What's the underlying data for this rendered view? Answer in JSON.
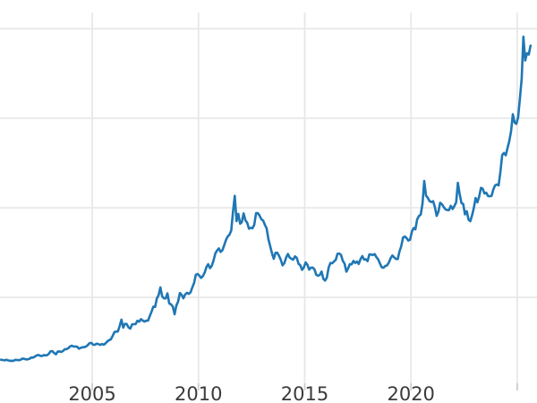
{
  "chart_data": {
    "type": "line",
    "title": "",
    "xlabel": "",
    "ylabel": "",
    "legend": false,
    "grid": true,
    "x_range": [
      2000.66,
      2025.93
    ],
    "y_range": [
      36,
      3762
    ],
    "y_gridline_values": [
      900,
      1800,
      2700,
      3600
    ],
    "x_ticks": [
      {
        "year": 2005,
        "label": "2005"
      },
      {
        "year": 2010,
        "label": "2010"
      },
      {
        "year": 2015,
        "label": "2015"
      },
      {
        "year": 2020,
        "label": "2020"
      },
      {
        "year": 2025,
        "label": ""
      }
    ],
    "series": {
      "frequency": "monthly",
      "start_year": 2000,
      "start_month": 9,
      "values": [
        273,
        270,
        266,
        272,
        266,
        262,
        263,
        261,
        272,
        270,
        268,
        272,
        284,
        283,
        276,
        276,
        281,
        295,
        294,
        303,
        314,
        321,
        313,
        310,
        319,
        317,
        319,
        333,
        357,
        359,
        340,
        328,
        355,
        356,
        351,
        360,
        379,
        379,
        389,
        407,
        414,
        405,
        406,
        403,
        384,
        392,
        398,
        400,
        405,
        420,
        439,
        442,
        424,
        423,
        434,
        429,
        422,
        431,
        424,
        437,
        456,
        470,
        477,
        510,
        550,
        555,
        557,
        611,
        676,
        596,
        634,
        632,
        598,
        586,
        628,
        630,
        631,
        665,
        655,
        680,
        667,
        656,
        665,
        665,
        713,
        755,
        806,
        804,
        890,
        922,
        1000,
        910,
        889,
        889,
        940,
        839,
        829,
        807,
        730,
        816,
        858,
        943,
        924,
        890,
        929,
        946,
        934,
        950,
        997,
        1043,
        1127,
        1135,
        1118,
        1095,
        1113,
        1149,
        1205,
        1233,
        1193,
        1216,
        1271,
        1342,
        1370,
        1391,
        1356,
        1373,
        1424,
        1474,
        1511,
        1529,
        1573,
        1756,
        1920,
        1666,
        1739,
        1640,
        1656,
        1743,
        1674,
        1650,
        1589,
        1598,
        1594,
        1630,
        1745,
        1747,
        1721,
        1685,
        1671,
        1628,
        1593,
        1485,
        1414,
        1343,
        1287,
        1347,
        1348,
        1316,
        1276,
        1221,
        1244,
        1300,
        1336,
        1299,
        1288,
        1279,
        1311,
        1296,
        1237,
        1223,
        1176,
        1201,
        1251,
        1227,
        1179,
        1198,
        1199,
        1181,
        1128,
        1117,
        1125,
        1159,
        1086,
        1068,
        1097,
        1200,
        1246,
        1242,
        1260,
        1276,
        1337,
        1340,
        1327,
        1267,
        1238,
        1157,
        1192,
        1234,
        1231,
        1266,
        1246,
        1260,
        1236,
        1283,
        1314,
        1280,
        1282,
        1264,
        1331,
        1330,
        1325,
        1335,
        1303,
        1281,
        1238,
        1201,
        1198,
        1215,
        1221,
        1250,
        1292,
        1320,
        1301,
        1286,
        1284,
        1359,
        1413,
        1500,
        1511,
        1495,
        1471,
        1479,
        1561,
        1597,
        1583,
        1683,
        1716,
        1732,
        1843,
        2070,
        1922,
        1900,
        1866,
        1858,
        1867,
        1808,
        1718,
        1762,
        1850,
        1835,
        1807,
        1784,
        1777,
        1777,
        1820,
        1787,
        1817,
        1856,
        2050,
        1937,
        1848,
        1837,
        1733,
        1766,
        1681,
        1665,
        1725,
        1797,
        1898,
        1855,
        1913,
        2000,
        1992,
        1943,
        1951,
        1918,
        1916,
        1919,
        1984,
        2026,
        2034,
        2025,
        2160,
        2330,
        2351,
        2327,
        2398,
        2470,
        2568,
        2740,
        2657,
        2643,
        2708,
        2897,
        3100,
        3520,
        3280,
        3353,
        3340,
        3430
      ]
    },
    "colors": {
      "background": "#ffffff",
      "line": "#1f77b4",
      "grid": "#e8e8e8",
      "tick": "#cccccc",
      "tick_label": "#3b3b3b"
    }
  }
}
